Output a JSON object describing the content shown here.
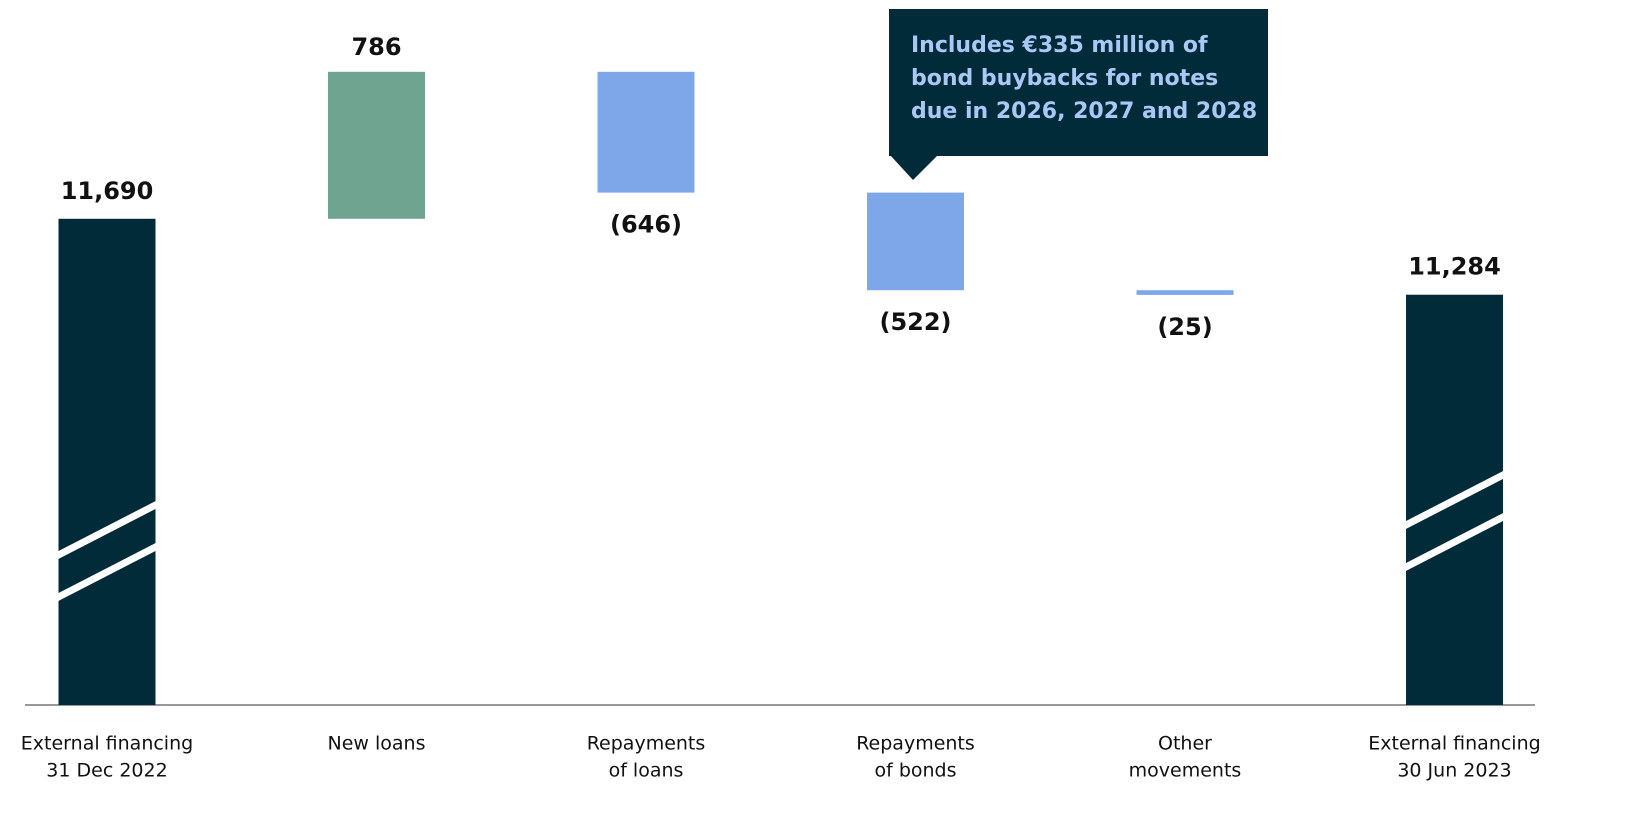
{
  "chart_data": {
    "type": "waterfall",
    "categories": [
      [
        "External financing",
        "31 Dec 2022"
      ],
      [
        "New loans"
      ],
      [
        "Repayments",
        "of loans"
      ],
      [
        "Repayments",
        "of bonds"
      ],
      [
        "Other",
        "movements"
      ],
      [
        "External financing",
        "30 Jun 2023"
      ]
    ],
    "values": [
      11690,
      786,
      -646,
      -522,
      -25,
      11284
    ],
    "value_labels": [
      "11,690",
      "786",
      "(646)",
      "(522)",
      "(25)",
      "11,284"
    ],
    "colors": {
      "total": "#022b3a",
      "increase": "#6fa590",
      "decrease": "#7ea7ea"
    },
    "ylim": [
      9090,
      12860
    ],
    "axis_break": true,
    "annotation": [
      "Includes €335 million of",
      "bond buybacks for notes",
      "due in 2026, 2027 and 2028"
    ]
  }
}
